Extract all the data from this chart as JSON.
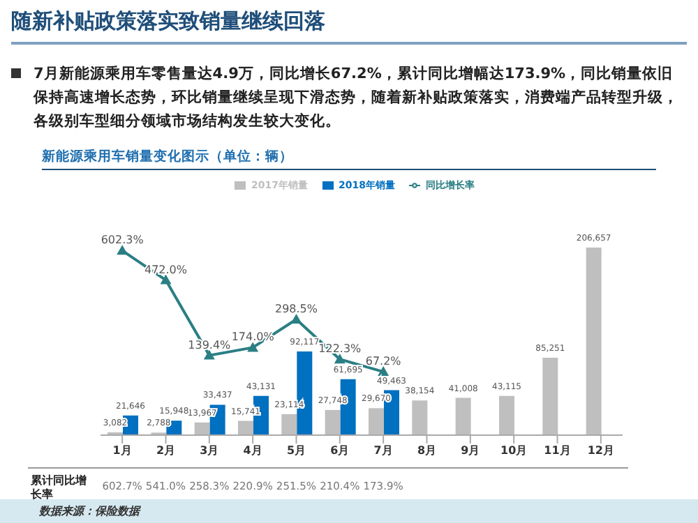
{
  "chart_data": {
    "type": "bar",
    "title": "随新补贴政策落实致销量继续回落",
    "subtitle": "7月新能源乘用车零售量达4.9万，同比增长67.2%，累计同比增幅达173.9%，同比销量依旧保持高速增长态势，环比销量继续呈现下滑态势，随着新补贴政策落实，消费端产品转型升级，各级别车型细分领域市场结构发生较大变化。",
    "categories": [
      "1月",
      "2月",
      "3月",
      "4月",
      "5月",
      "6月",
      "7月",
      "8月",
      "9月",
      "10月",
      "11月",
      "12月"
    ],
    "series": [
      {
        "name": "2017年销量",
        "color": "#bfbfbf",
        "values": [
          3082,
          2788,
          13967,
          15741,
          23114,
          27748,
          29670,
          38154,
          41008,
          43115,
          85251,
          206657
        ],
        "value_labels": [
          "3,082",
          "2,788",
          "13,967",
          "15,741",
          "23,114",
          "27,748",
          "29,670",
          "38,154",
          "41,008",
          "43,115",
          "85,251",
          "206,657"
        ]
      },
      {
        "name": "2018年销量",
        "color": "#0070c0",
        "values": [
          21646,
          15948,
          33437,
          43131,
          92117,
          61695,
          49463,
          null,
          null,
          null,
          null,
          null
        ],
        "value_labels": [
          "21,646",
          "15,948",
          "33,437",
          "43,131",
          "92,117",
          "61,695",
          "49,463",
          null,
          null,
          null,
          null,
          null
        ]
      },
      {
        "name": "同比增长率",
        "type": "line",
        "axis": "y2",
        "color": "#2a7f84",
        "values": [
          602.3,
          472.0,
          139.4,
          174.0,
          298.5,
          122.3,
          67.2,
          null,
          null,
          null,
          null,
          null
        ],
        "value_labels": [
          "602.3%",
          "472.0%",
          "139.4%",
          "174.0%",
          "298.5%",
          "122.3%",
          "67.2%",
          null,
          null,
          null,
          null,
          null
        ]
      }
    ],
    "tick_labels": "x",
    "legend": "top",
    "marker": "triangle",
    "data_labels": true,
    "annotations": [
      "新能源乘用车销量变化图示（单位：辆）",
      "累计同比增长率",
      "602.7%",
      "541.0%",
      "258.3%",
      "220.9%",
      "251.5%",
      "210.4%",
      "173.9%",
      "数据来源：保险数据"
    ]
  }
}
